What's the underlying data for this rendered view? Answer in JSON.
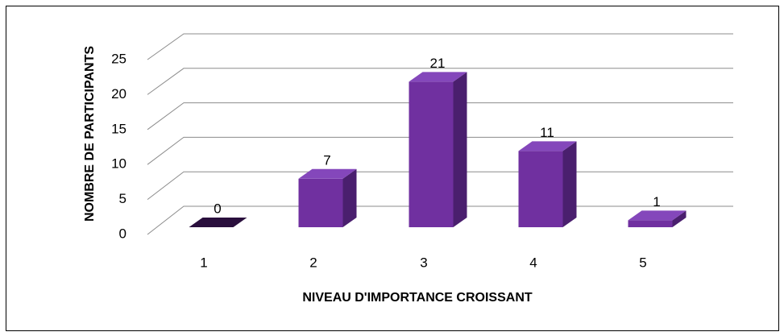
{
  "chart_data": {
    "type": "bar",
    "x_label": "NIVEAU D'IMPORTANCE CROISSANT",
    "y_label": "NOMBRE DE PARTICIPANTS",
    "categories": [
      "1",
      "2",
      "3",
      "4",
      "5"
    ],
    "values": [
      0,
      7,
      21,
      11,
      1
    ],
    "color": "#7030a0",
    "ylim": [
      0,
      25
    ],
    "yticks": [
      0,
      5,
      10,
      15,
      20,
      25
    ],
    "grid": true
  }
}
